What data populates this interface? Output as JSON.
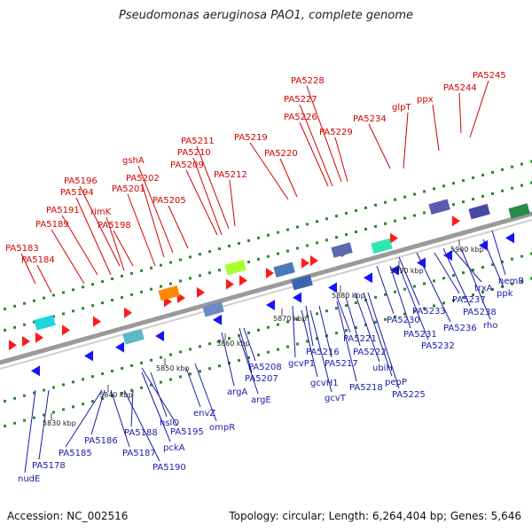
{
  "title": "Pseudomonas aeruginosa PAO1, complete genome",
  "footer": {
    "accession": "Accession: NC_002516",
    "stats": "Topology: circular; Length: 6,264,404 bp; Genes: 5,646"
  },
  "colors": {
    "forward_label": "#d40000",
    "reverse_label": "#1a1aa8",
    "forward_arrow": "#ff1a1a",
    "reverse_arrow": "#1414ff",
    "backbone": "#9a9a9a",
    "tick": "#2a8a2a"
  },
  "scale_labels": [
    "5830 kbp",
    "5840 kbp",
    "5850 kbp",
    "5860 kbp",
    "5870 kbp",
    "5880 kbp",
    "5890 kbp",
    "5900 kbp"
  ],
  "forward_genes": [
    "PA5183",
    "PA5184",
    "PA5189",
    "PA5191",
    "PA5194",
    "PA5196",
    "rimK",
    "PA5198",
    "PA5201",
    "PA5202",
    "gshA",
    "PA5205",
    "PA5209",
    "PA5210",
    "PA5211",
    "PA5212",
    "PA5219",
    "PA5220",
    "PA5226",
    "PA5227",
    "PA5228",
    "PA5229",
    "PA5234",
    "glpT",
    "ppx",
    "PA5244",
    "PA5245"
  ],
  "reverse_genes": [
    "nudE",
    "PA5178",
    "PA5185",
    "PA5186",
    "PA5187",
    "PA5188",
    "PA5190",
    "pckA",
    "hslO",
    "PA5195",
    "envZ",
    "ompR",
    "argA",
    "PA5207",
    "PA5208",
    "argE",
    "gcvP1",
    "gcvH1",
    "gcvT",
    "PA5216",
    "PA5217",
    "PA5218",
    "PA5221",
    "PA5222",
    "ubiH",
    "pepP",
    "PA5225",
    "PA5230",
    "PA5231",
    "PA5232",
    "PA5233",
    "PA5236",
    "PA5237",
    "PA5238",
    "trxA",
    "rho",
    "ppk",
    "hemB"
  ]
}
